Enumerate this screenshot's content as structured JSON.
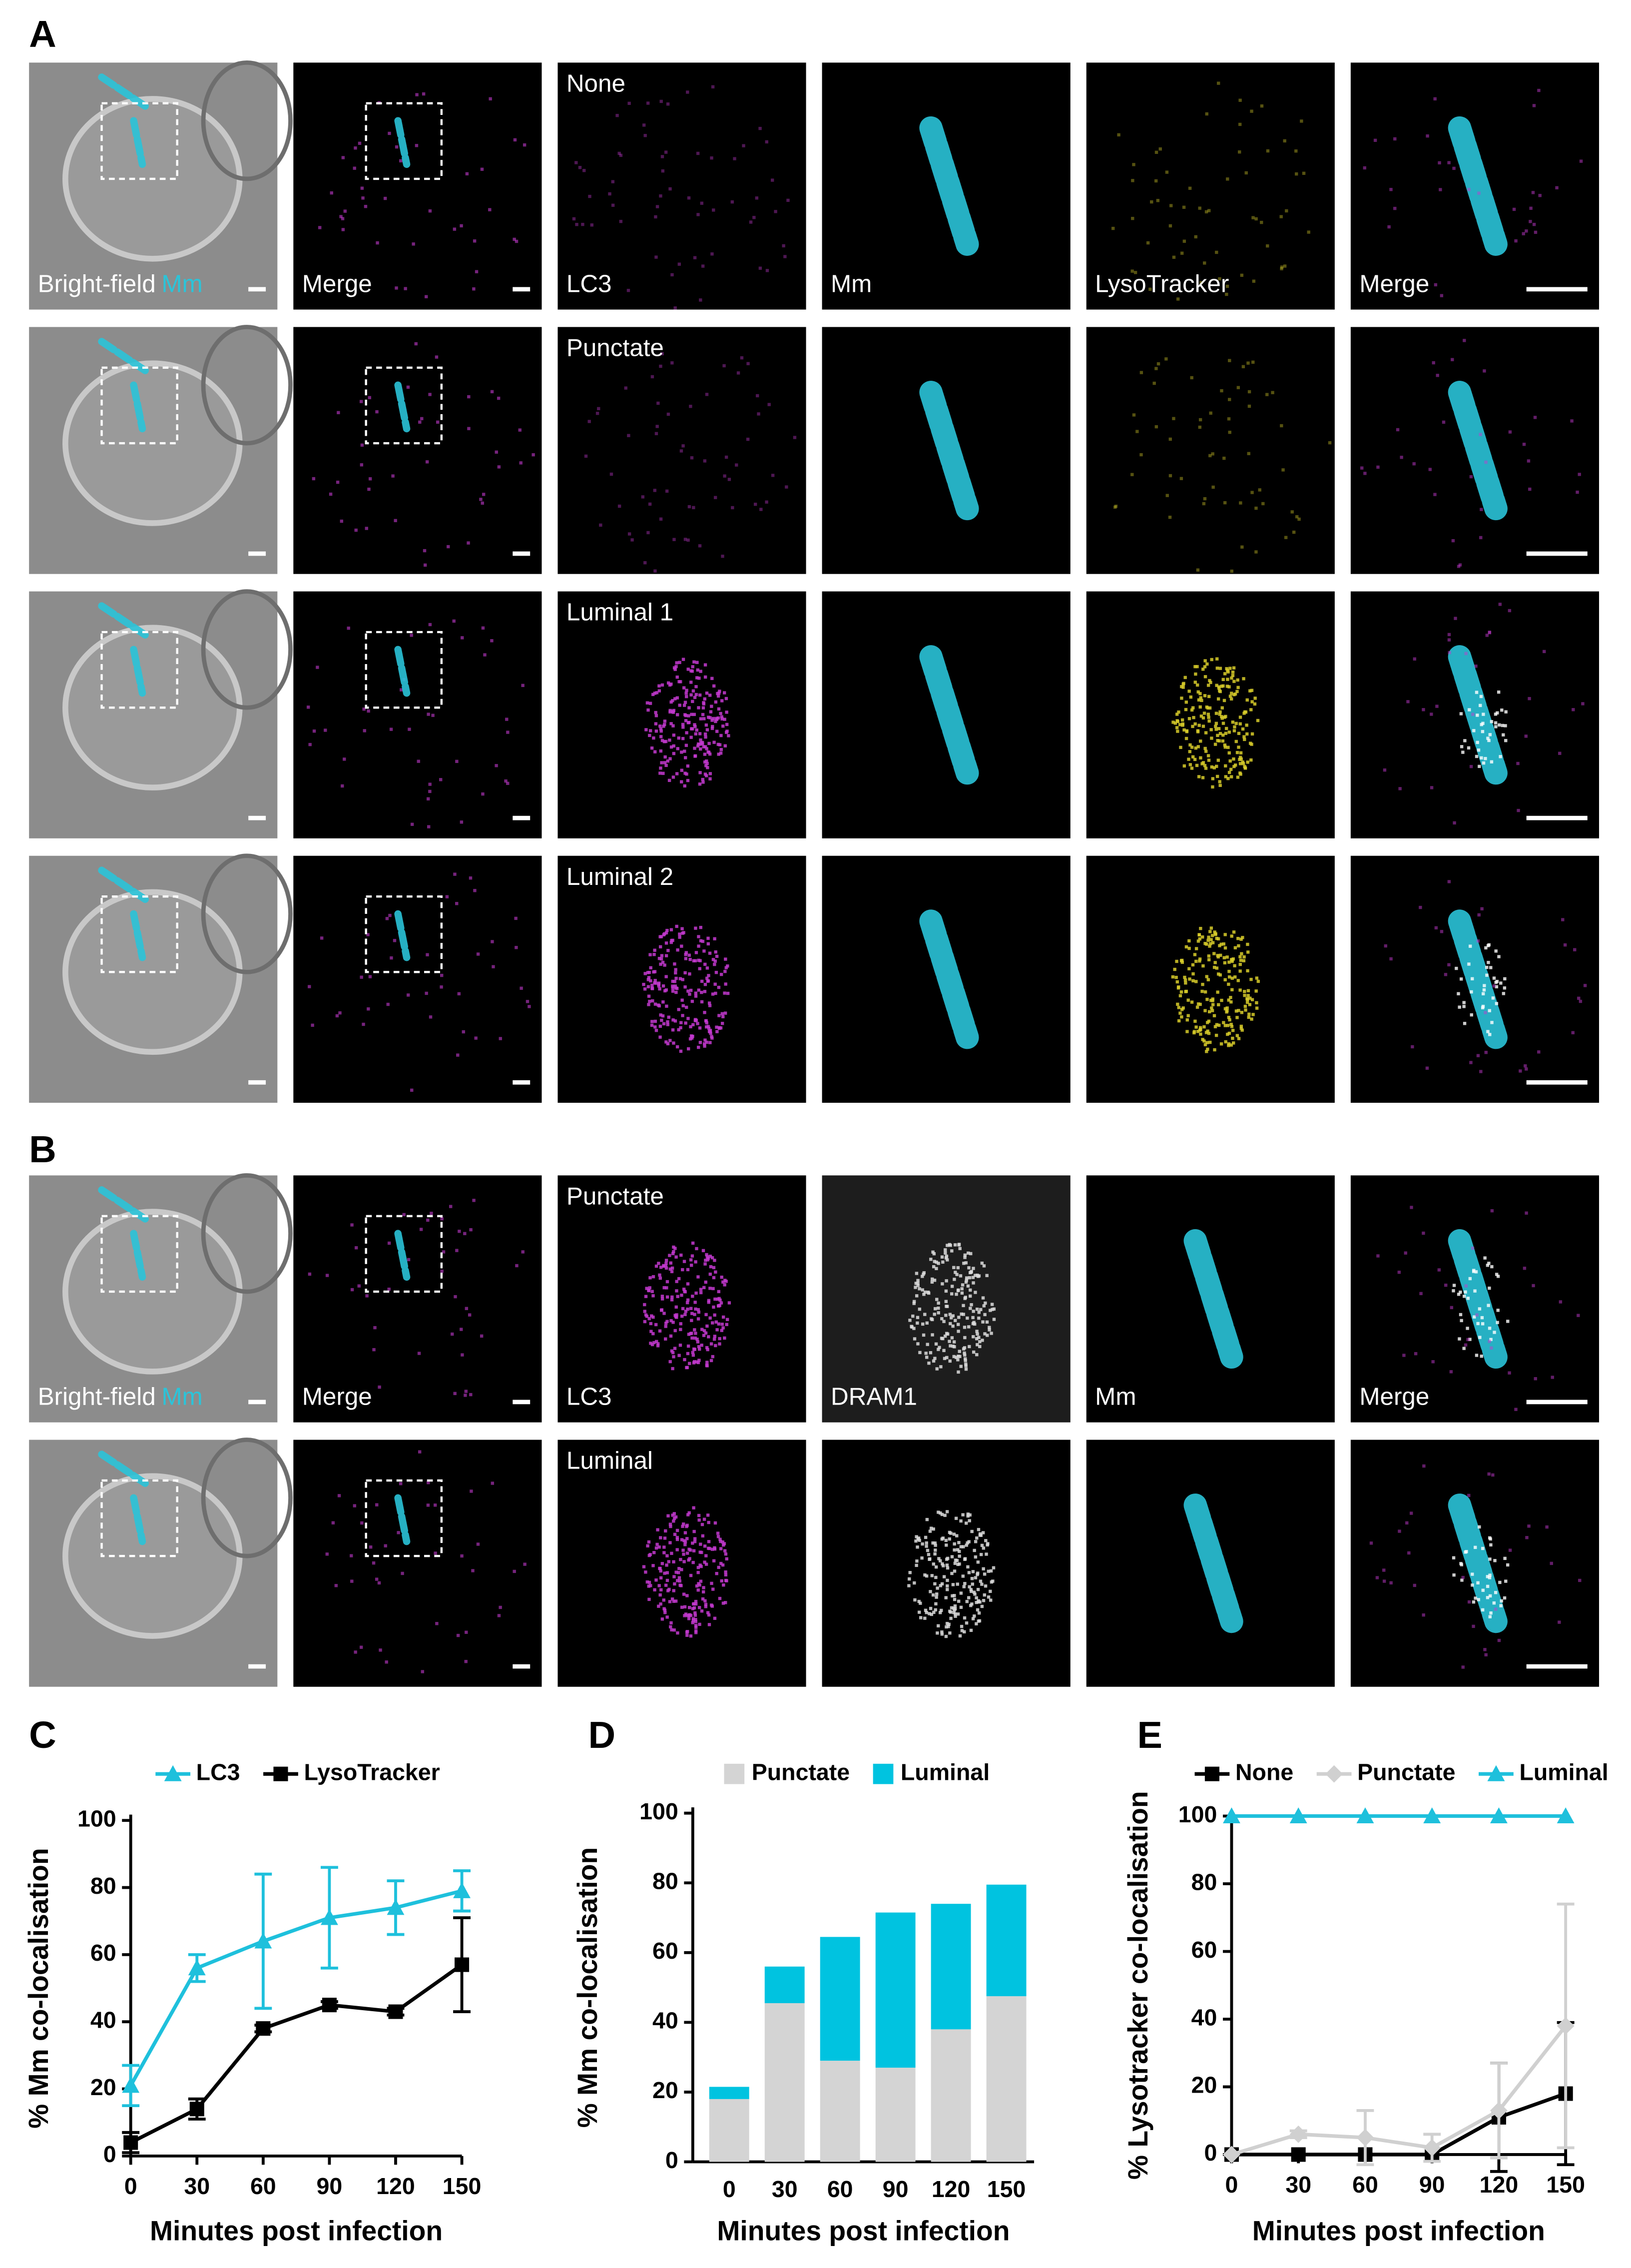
{
  "figure": {
    "panel_labels": [
      "A",
      "B",
      "C",
      "D",
      "E"
    ],
    "panel_a": {
      "row_labels": [
        "None",
        "Punctate",
        "Luminal 1",
        "Luminal 2"
      ],
      "channel_labels": [
        "Bright-field",
        "Mm",
        "Merge",
        "LC3",
        "Mm",
        "LysoTracker",
        "Merge"
      ]
    },
    "panel_b": {
      "row_labels": [
        "Punctate",
        "Luminal"
      ],
      "channel_labels": [
        "Bright-field",
        "Mm",
        "Merge",
        "LC3",
        "DRAM1",
        "Mm",
        "Merge"
      ]
    }
  },
  "chart_data": [
    {
      "type": "line",
      "y_label": "% Mm co-localisation",
      "x_label": "Minutes post infection",
      "x": [
        0,
        30,
        60,
        90,
        120,
        150
      ],
      "xlim": [
        0,
        150
      ],
      "xticks": [
        0,
        30,
        60,
        90,
        120,
        150
      ],
      "ylim": [
        0,
        100
      ],
      "yticks": [
        0,
        20,
        40,
        60,
        80,
        100
      ],
      "legend": "top",
      "series": [
        {
          "name": "LC3",
          "color": "#1ec0dc",
          "marker": "triangle",
          "values": [
            21,
            56,
            64,
            71,
            74,
            79
          ],
          "errors": [
            6,
            4,
            20,
            15,
            8,
            6
          ]
        },
        {
          "name": "LysoTracker",
          "color": "#000000",
          "marker": "square",
          "values": [
            4,
            14,
            38,
            45,
            43,
            57
          ],
          "errors": [
            3,
            3,
            1,
            1,
            1,
            14
          ]
        }
      ]
    },
    {
      "type": "bar",
      "stacked": true,
      "y_label": "% Mm co-localisation",
      "x_label": "Minutes post infection",
      "categories": [
        "0",
        "30",
        "60",
        "90",
        "120",
        "150"
      ],
      "ylim": [
        0,
        100
      ],
      "yticks": [
        0,
        20,
        40,
        60,
        80,
        100
      ],
      "legend": "top",
      "series": [
        {
          "name": "Punctate",
          "color": "#d4d4d4",
          "values": [
            18,
            45.5,
            29,
            27,
            38,
            47.5
          ]
        },
        {
          "name": "Luminal",
          "color": "#00c3e0",
          "values": [
            3.5,
            10.5,
            35.5,
            44.5,
            36,
            32
          ]
        }
      ]
    },
    {
      "type": "line",
      "y_label": "% Lysotracker co-localisation",
      "x_label": "Minutes post infection",
      "x": [
        0,
        30,
        60,
        90,
        120,
        150
      ],
      "xlim": [
        0,
        150
      ],
      "xticks": [
        0,
        30,
        60,
        90,
        120,
        150
      ],
      "ylim": [
        0,
        100
      ],
      "yticks": [
        0,
        20,
        40,
        60,
        80,
        100
      ],
      "legend": "top",
      "series": [
        {
          "name": "None",
          "color": "#000000",
          "marker": "square",
          "values": [
            0,
            0,
            0,
            0,
            11,
            18
          ],
          "errors": [
            0,
            0,
            0,
            0,
            16,
            21
          ]
        },
        {
          "name": "Punctate",
          "color": "#d0d0d0",
          "marker": "diamond",
          "values": [
            0,
            6,
            5,
            2,
            13,
            38
          ],
          "errors": [
            0,
            1,
            8,
            4,
            14,
            36
          ]
        },
        {
          "name": "Luminal",
          "color": "#1ec0dc",
          "marker": "triangle",
          "values": [
            100,
            100,
            100,
            100,
            100,
            100
          ],
          "errors": [
            0,
            0,
            0,
            0,
            0,
            0
          ]
        }
      ]
    }
  ]
}
